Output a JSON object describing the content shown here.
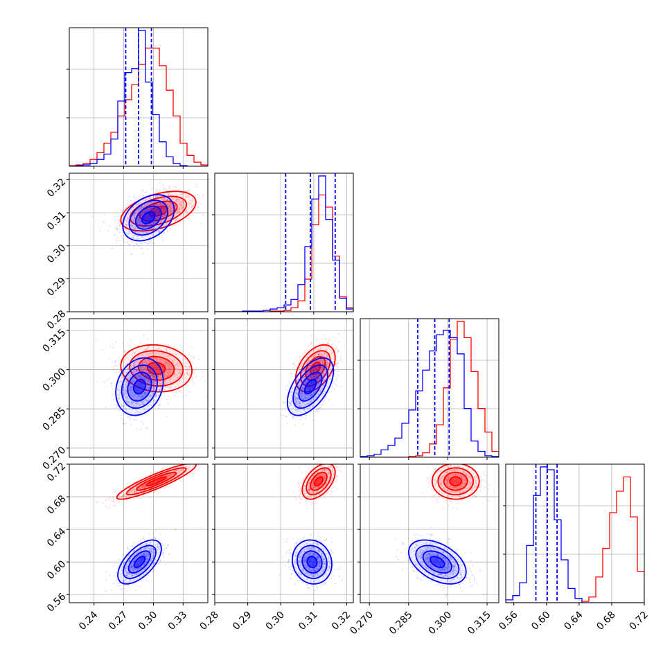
{
  "chart_data": {
    "type": "corner",
    "title": "",
    "grid": true,
    "series": [
      {
        "color": "#0000ff"
      },
      {
        "color": "#ff0000"
      }
    ],
    "params": [
      {
        "range": [
          0.215,
          0.355
        ],
        "ticks": [
          "0.24",
          "0.27",
          "0.30",
          "0.33"
        ],
        "tick_values": [
          0.24,
          0.27,
          0.3,
          0.33
        ]
      },
      {
        "range": [
          0.28,
          0.322
        ],
        "ticks": [
          "0.28",
          "0.29",
          "0.30",
          "0.31",
          "0.32"
        ],
        "tick_values": [
          0.28,
          0.29,
          0.3,
          0.31,
          0.32
        ]
      },
      {
        "range": [
          0.2665,
          0.3195
        ],
        "ticks": [
          "0.270",
          "0.285",
          "0.300",
          "0.315"
        ],
        "tick_values": [
          0.27,
          0.285,
          0.3,
          0.315
        ]
      },
      {
        "range": [
          0.55,
          0.72
        ],
        "ticks": [
          "0.56",
          "0.60",
          "0.64",
          "0.68",
          "0.72"
        ],
        "tick_values": [
          0.56,
          0.6,
          0.64,
          0.68,
          0.72
        ]
      }
    ],
    "quantiles": [
      [
        0.272,
        0.285,
        0.298
      ],
      [
        0.3015,
        0.309,
        0.3165
      ],
      [
        0.2885,
        0.295,
        0.3005
      ],
      [
        0.587,
        0.601,
        0.613
      ]
    ],
    "histograms": [
      {
        "blue": [
          0,
          0.5,
          1,
          2,
          5,
          9,
          20,
          48,
          69,
          72,
          100,
          62,
          38,
          18,
          7,
          2,
          0.5,
          0,
          0,
          0
        ],
        "red": [
          0.5,
          1,
          2,
          5,
          10,
          17,
          25,
          37,
          49,
          60,
          75,
          87,
          87,
          74,
          56,
          37,
          17,
          8,
          3,
          1
        ]
      },
      {
        "blue": [
          0,
          0,
          0,
          0,
          0.5,
          0.5,
          0.5,
          1,
          2,
          3,
          5,
          9,
          20,
          48,
          83,
          100,
          68,
          38,
          10,
          2
        ],
        "red": [
          0,
          0,
          0,
          0,
          0,
          0,
          0,
          0,
          0.5,
          0.5,
          1,
          3,
          8,
          24,
          64,
          86,
          77,
          41,
          11,
          3
        ]
      },
      {
        "blue": [
          0.5,
          1,
          2,
          5,
          8,
          13,
          23,
          32,
          45,
          59,
          72,
          83,
          86,
          81,
          70,
          33,
          11,
          4,
          1,
          0.5
        ],
        "red": [
          0,
          0,
          0,
          0,
          0,
          0,
          0,
          0.5,
          1,
          3,
          9,
          22,
          47,
          80,
          92,
          81,
          58,
          33,
          17,
          4
        ]
      },
      {
        "blue": [
          2,
          5,
          14,
          40,
          75,
          95,
          93,
          58,
          30,
          10,
          3,
          0,
          0,
          0,
          0,
          0,
          0,
          0,
          0,
          0
        ],
        "red": [
          0,
          0,
          0,
          0,
          0,
          0,
          0,
          0,
          0,
          0,
          0,
          1,
          4,
          18,
          38,
          63,
          78,
          88,
          60,
          22
        ]
      }
    ],
    "joint": [
      {
        "row": 1,
        "col": 0,
        "blue": {
          "mean": [
            0.295,
            0.3085
          ],
          "sd": [
            0.013,
            0.0035
          ],
          "corr": 0.35
        },
        "red": {
          "mean": [
            0.305,
            0.3105
          ],
          "sd": [
            0.019,
            0.003
          ],
          "corr": 0.45
        }
      },
      {
        "row": 2,
        "col": 0,
        "blue": {
          "mean": [
            0.286,
            0.2935
          ],
          "sd": [
            0.012,
            0.0055
          ],
          "corr": 0.2
        },
        "red": {
          "mean": [
            0.303,
            0.3005
          ],
          "sd": [
            0.018,
            0.0045
          ],
          "corr": -0.1
        }
      },
      {
        "row": 2,
        "col": 1,
        "blue": {
          "mean": [
            0.309,
            0.2935
          ],
          "sd": [
            0.0035,
            0.0055
          ],
          "corr": 0.55
        },
        "red": {
          "mean": [
            0.3105,
            0.3005
          ],
          "sd": [
            0.003,
            0.0045
          ],
          "corr": 0.45
        }
      },
      {
        "row": 3,
        "col": 0,
        "blue": {
          "mean": [
            0.286,
            0.6
          ],
          "sd": [
            0.011,
            0.0135
          ],
          "corr": 0.6
        },
        "red": {
          "mean": [
            0.303,
            0.699
          ],
          "sd": [
            0.02,
            0.011
          ],
          "corr": 0.9
        }
      },
      {
        "row": 3,
        "col": 1,
        "blue": {
          "mean": [
            0.3095,
            0.6
          ],
          "sd": [
            0.003,
            0.0135
          ],
          "corr": -0.1
        },
        "red": {
          "mean": [
            0.3115,
            0.699
          ],
          "sd": [
            0.0025,
            0.011
          ],
          "corr": 0.5
        }
      },
      {
        "row": 3,
        "col": 2,
        "blue": {
          "mean": [
            0.296,
            0.6
          ],
          "sd": [
            0.0055,
            0.0135
          ],
          "corr": -0.45
        },
        "red": {
          "mean": [
            0.303,
            0.699
          ],
          "sd": [
            0.0045,
            0.011
          ],
          "corr": 0.0
        }
      }
    ]
  }
}
